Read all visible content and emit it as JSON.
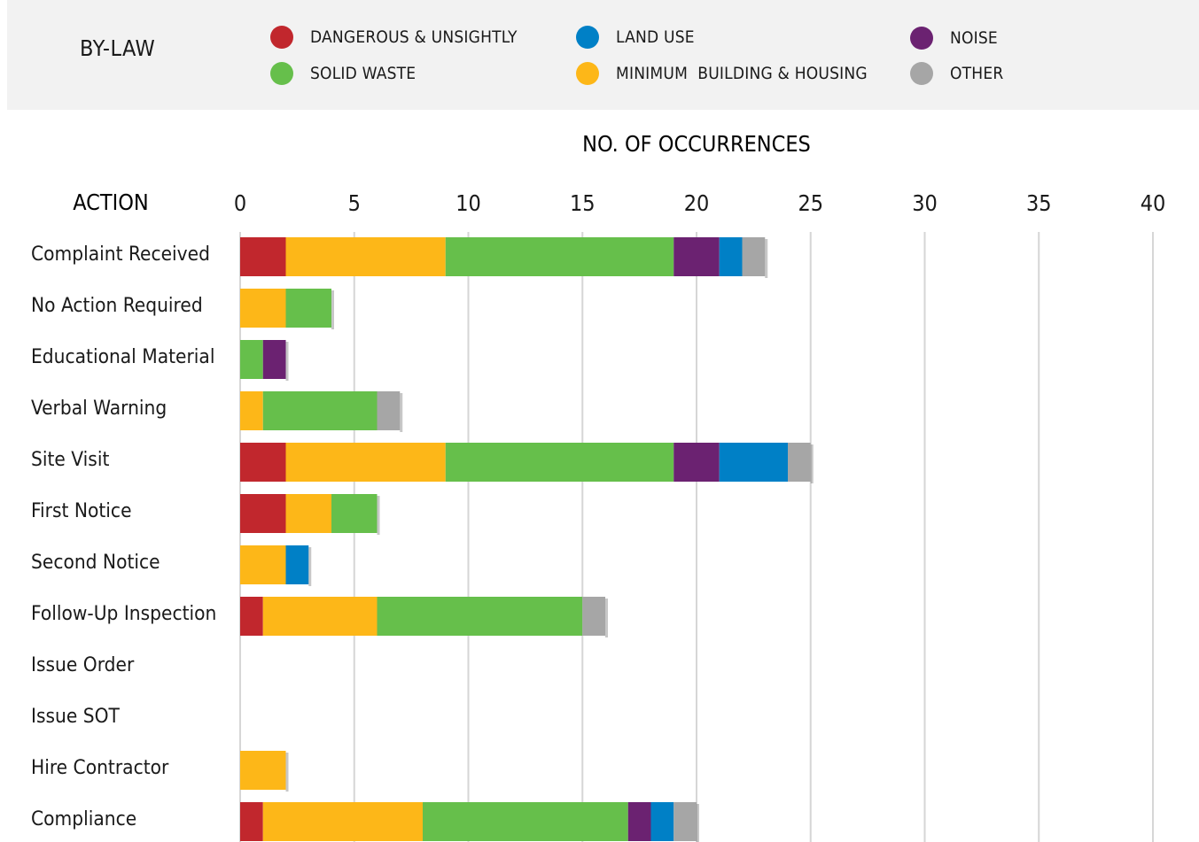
{
  "legend": {
    "heading": "BY-LAW",
    "items": [
      {
        "label": "DANGEROUS & UNSIGHTLY",
        "color": "#c1272d"
      },
      {
        "label": "SOLID WASTE",
        "color": "#66bf4b"
      },
      {
        "label": "LAND USE",
        "color": "#0080c6"
      },
      {
        "label": "MINIMUM  BUILDING & HOUSING",
        "color": "#fdb718"
      },
      {
        "label": "NOISE",
        "color": "#6b2271"
      },
      {
        "label": "OTHER",
        "color": "#a6a6a6"
      }
    ]
  },
  "chart_data": {
    "type": "bar",
    "orientation": "horizontal",
    "stacked": true,
    "title": "NO. OF OCCURRENCES",
    "ylabel": "ACTION",
    "xlim": [
      0,
      40
    ],
    "xticks": [
      0,
      5,
      10,
      15,
      20,
      25,
      30,
      35,
      40
    ],
    "grid": true,
    "legend_position": "top",
    "categories": [
      "Complaint Received",
      "No Action Required",
      "Educational Material",
      "Verbal Warning",
      "Site Visit",
      "First Notice",
      "Second Notice",
      "Follow-Up Inspection",
      "Issue Order",
      "Issue SOT",
      "Hire Contractor",
      "Compliance"
    ],
    "series": [
      {
        "name": "DANGEROUS & UNSIGHTLY",
        "color": "#c1272d",
        "values": [
          2,
          0,
          0,
          0,
          2,
          2,
          0,
          1,
          0,
          0,
          0,
          1
        ]
      },
      {
        "name": "MINIMUM  BUILDING & HOUSING",
        "color": "#fdb718",
        "values": [
          7,
          2,
          0,
          1,
          7,
          2,
          2,
          5,
          0,
          0,
          2,
          7
        ]
      },
      {
        "name": "SOLID WASTE",
        "color": "#66bf4b",
        "values": [
          10,
          2,
          1,
          5,
          10,
          2,
          0,
          9,
          0,
          0,
          0,
          9
        ]
      },
      {
        "name": "NOISE",
        "color": "#6b2271",
        "values": [
          2,
          0,
          1,
          0,
          2,
          0,
          0,
          0,
          0,
          0,
          0,
          1
        ]
      },
      {
        "name": "LAND USE",
        "color": "#0080c6",
        "values": [
          1,
          0,
          0,
          0,
          3,
          0,
          1,
          0,
          0,
          0,
          0,
          1
        ]
      },
      {
        "name": "OTHER",
        "color": "#a6a6a6",
        "values": [
          1,
          0,
          0,
          1,
          1,
          0,
          0,
          1,
          0,
          0,
          0,
          1
        ]
      }
    ]
  }
}
